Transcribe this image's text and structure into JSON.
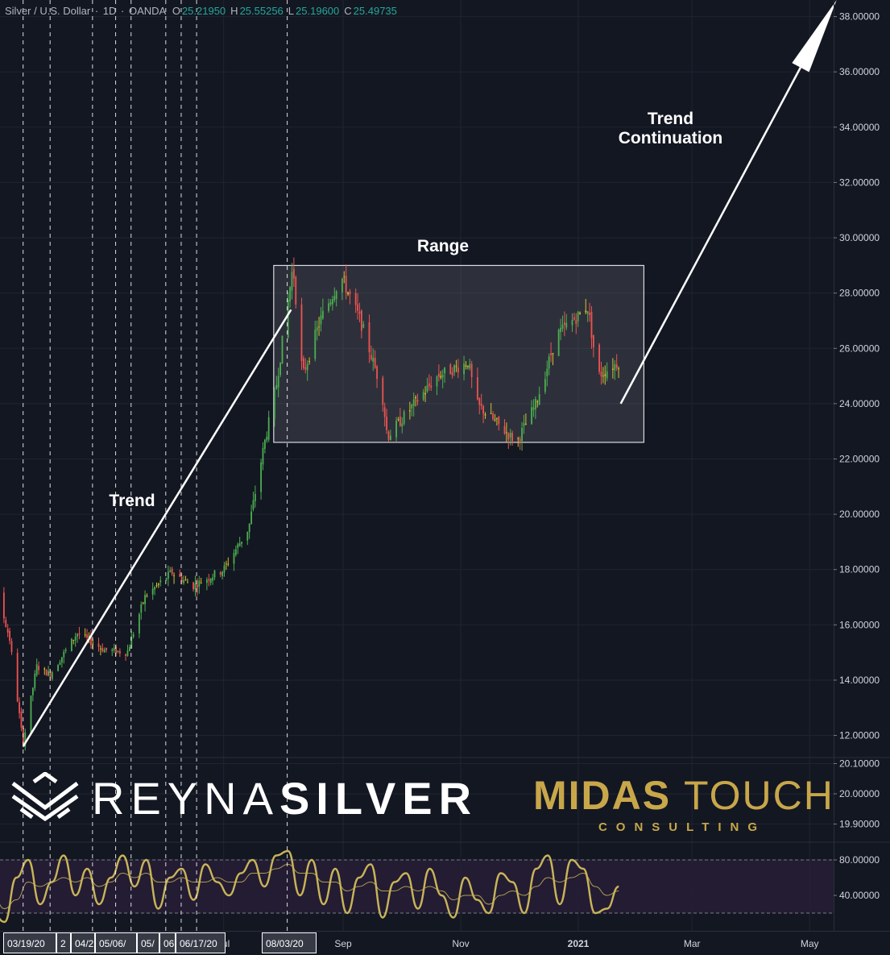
{
  "header": {
    "symbol": "Silver / U.S. Dollar",
    "interval": "1D",
    "broker": "OANDA",
    "open_label": "O",
    "open": "25.21950",
    "high_label": "H",
    "high": "25.55256",
    "low_label": "L",
    "low": "25.19600",
    "close_label": "C",
    "close": "25.49735"
  },
  "annotations": {
    "trend": "Trend",
    "range": "Range",
    "continuation_line1": "Trend",
    "continuation_line2": "Continuation"
  },
  "logos": {
    "reyna_thin": "REYNA",
    "reyna_bold": "SILVER",
    "midas_bold": "MIDAS",
    "midas_light": "TOUCH",
    "midas_sub": "CONSULTING"
  },
  "date_markers": [
    "03/19/20",
    "2",
    "04/2",
    "05/06/",
    "05/",
    "06",
    "06/17/20",
    "08/03/20"
  ],
  "colors": {
    "background": "#131722",
    "up": "#4caf50",
    "down": "#ef5350",
    "doji": "#d4c12c",
    "oscillator": "#c9b458",
    "range_box": "#ffffff",
    "brand_gold": "#c8a74a"
  },
  "chart_data": [
    {
      "type": "candlestick",
      "y_axis_labels": [
        "38.00000",
        "36.00000",
        "34.00000",
        "32.00000",
        "30.00000",
        "28.00000",
        "26.00000",
        "24.00000",
        "22.00000",
        "20.00000",
        "18.00000",
        "16.00000",
        "14.00000",
        "12.00000"
      ],
      "ylim": [
        11.2,
        38.6
      ],
      "x_axis_labels": [
        "Jul",
        "Sep",
        "Nov",
        "2021",
        "Mar",
        "May"
      ],
      "price_path": [
        {
          "date": "2020-02-20",
          "close": 17.6
        },
        {
          "date": "2020-03-05",
          "close": 17.3
        },
        {
          "date": "2020-03-12",
          "close": 15.5
        },
        {
          "date": "2020-03-19",
          "close": 11.7
        },
        {
          "date": "2020-03-26",
          "close": 14.5
        },
        {
          "date": "2020-04-02",
          "close": 14.2
        },
        {
          "date": "2020-04-16",
          "close": 15.7
        },
        {
          "date": "2020-04-30",
          "close": 15.1
        },
        {
          "date": "2020-05-12",
          "close": 15.0
        },
        {
          "date": "2020-05-21",
          "close": 17.0
        },
        {
          "date": "2020-06-04",
          "close": 17.9
        },
        {
          "date": "2020-06-15",
          "close": 17.4
        },
        {
          "date": "2020-07-01",
          "close": 18.0
        },
        {
          "date": "2020-07-14",
          "close": 19.5
        },
        {
          "date": "2020-07-22",
          "close": 22.5
        },
        {
          "date": "2020-07-28",
          "close": 24.5
        },
        {
          "date": "2020-08-06",
          "close": 29.0
        },
        {
          "date": "2020-08-11",
          "close": 25.0
        },
        {
          "date": "2020-08-20",
          "close": 27.0
        },
        {
          "date": "2020-08-31",
          "close": 28.6
        },
        {
          "date": "2020-09-10",
          "close": 27.0
        },
        {
          "date": "2020-09-21",
          "close": 24.5
        },
        {
          "date": "2020-09-24",
          "close": 22.8
        },
        {
          "date": "2020-10-08",
          "close": 24.0
        },
        {
          "date": "2020-10-20",
          "close": 25.0
        },
        {
          "date": "2020-11-05",
          "close": 25.5
        },
        {
          "date": "2020-11-09",
          "close": 24.0
        },
        {
          "date": "2020-11-30",
          "close": 22.6
        },
        {
          "date": "2020-12-10",
          "close": 24.0
        },
        {
          "date": "2020-12-21",
          "close": 26.5
        },
        {
          "date": "2021-01-06",
          "close": 27.5
        },
        {
          "date": "2021-01-11",
          "close": 25.0
        },
        {
          "date": "2021-01-22",
          "close": 25.5
        }
      ],
      "range_box": {
        "from": "2020-07-27",
        "to": "2021-02-04",
        "low": 22.6,
        "high": 29.0
      },
      "trend_line": {
        "from": {
          "date": "2020-03-19",
          "price": 11.6
        },
        "to": {
          "date": "2020-08-05",
          "price": 27.4
        }
      },
      "continuation_arrow": {
        "from": {
          "date": "2021-01-23",
          "price": 24.0
        },
        "to": {
          "date": "2021-05-15",
          "price": 38.6
        }
      },
      "date_marker_dates": [
        "2020-03-19",
        "2020-04-02",
        "2020-04-24",
        "2020-05-06",
        "2020-05-14",
        "2020-06-01",
        "2020-06-09",
        "2020-06-17",
        "2020-08-03"
      ]
    },
    {
      "type": "line",
      "name": "oscillator",
      "y_axis_labels": [
        "20.10000",
        "20.00000",
        "19.90000"
      ],
      "ylim": [
        19.84,
        20.12
      ],
      "lower_axis_labels": [
        "80.00000",
        "40.00000"
      ],
      "lower_ylim": [
        0,
        100
      ],
      "band": [
        20,
        80
      ],
      "series": [
        {
          "name": "fast",
          "values": [
            45,
            70,
            20,
            10,
            60,
            80,
            30,
            55,
            85,
            40,
            70,
            30,
            60,
            85,
            50,
            80,
            25,
            60,
            70,
            35,
            75,
            55,
            40,
            65,
            80,
            50,
            85,
            90,
            40,
            80,
            30,
            70,
            20,
            60,
            75,
            15,
            55,
            65,
            25,
            70,
            40,
            15,
            60,
            35,
            20,
            65,
            55,
            20,
            70,
            85,
            30,
            80,
            70,
            20,
            25,
            50
          ]
        },
        {
          "name": "slow",
          "values": [
            50,
            55,
            40,
            25,
            35,
            55,
            50,
            55,
            60,
            55,
            60,
            50,
            55,
            65,
            60,
            65,
            55,
            55,
            60,
            55,
            55,
            60,
            55,
            55,
            65,
            65,
            70,
            75,
            65,
            65,
            55,
            55,
            45,
            50,
            55,
            45,
            45,
            50,
            45,
            50,
            45,
            35,
            40,
            40,
            30,
            40,
            45,
            40,
            50,
            60,
            55,
            60,
            65,
            50,
            40,
            45
          ]
        }
      ]
    }
  ]
}
